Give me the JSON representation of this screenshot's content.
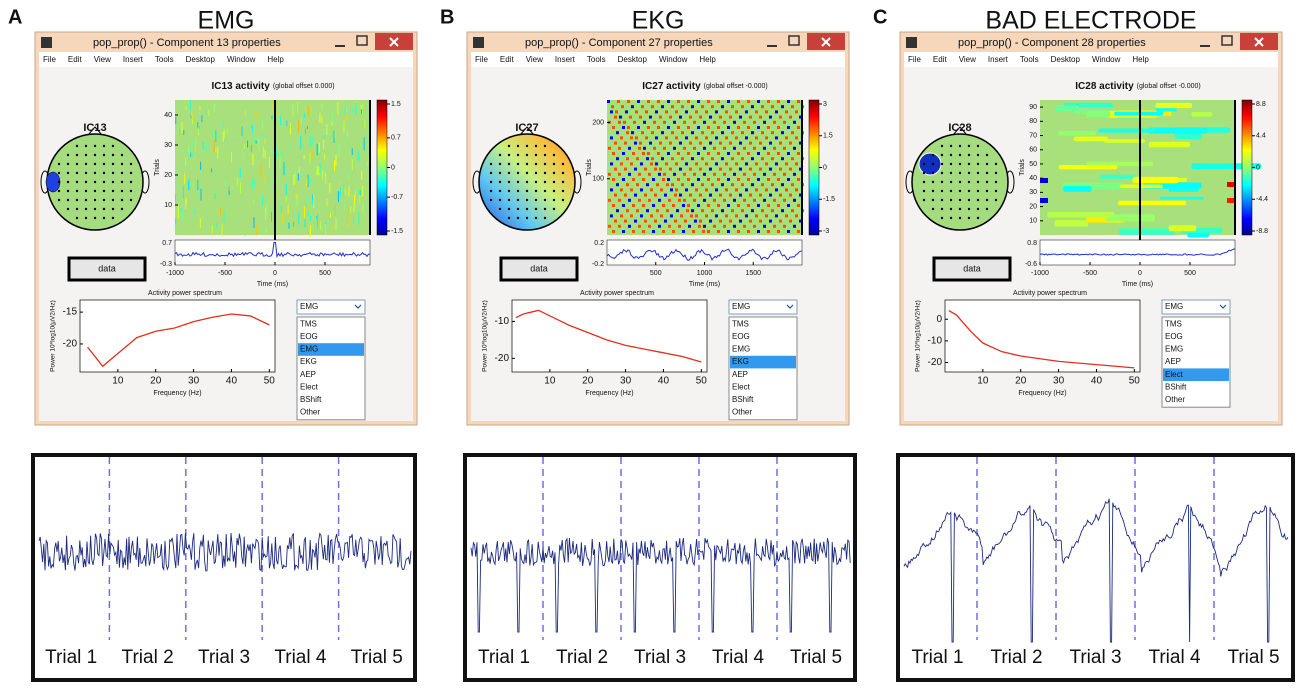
{
  "panels": [
    {
      "letter": "A",
      "heading": "EMG",
      "window_title": "pop_prop() - Component 13 properties",
      "menu": [
        "File",
        "Edit",
        "View",
        "Insert",
        "Tools",
        "Desktop",
        "Window",
        "Help"
      ],
      "ic_label": "IC13",
      "activity_title": "IC13 activity",
      "offset_note": "(global offset 0.000)",
      "erp": {
        "ylabel": "Trials",
        "yticks": [
          10,
          20,
          30,
          40
        ],
        "ylim": [
          0,
          45
        ],
        "colorbar_ticks": [
          1.5,
          0.7,
          0,
          -0.7,
          -1.5
        ],
        "trace_ticks": [
          0.7,
          -0.3
        ],
        "xlabel": "Time (ms)",
        "xticks": [
          -1000,
          -500,
          0,
          500
        ],
        "xlim": [
          -1000,
          950
        ]
      },
      "button": "data",
      "spectrum": {
        "title": "Activity power spectrum",
        "ylabel": "Power 10*log10(μV2/Hz)",
        "xlabel": "Frequency (Hz)",
        "xticks": [
          10,
          20,
          30,
          40,
          50
        ],
        "xlim": [
          0,
          51.5
        ],
        "yticks": [
          -15,
          -20
        ],
        "ylim": [
          -24.4,
          -13.1
        ],
        "x": [
          2,
          4,
          6,
          8,
          10,
          15,
          20,
          25,
          30,
          35,
          40,
          45,
          50
        ],
        "values": [
          -20.5,
          -22,
          -23.5,
          -22.5,
          -21.5,
          -19,
          -18,
          -17.5,
          -16.5,
          -15.8,
          -15.3,
          -15.6,
          -17
        ]
      },
      "dropdown": {
        "selected": "EMG",
        "options": [
          "TMS",
          "EOG",
          "EMG",
          "EKG",
          "AEP",
          "Elect",
          "BShift",
          "Other"
        ],
        "highlighted": 2
      },
      "trials": [
        "Trial 1",
        "Trial 2",
        "Trial 3",
        "Trial 4",
        "Trial 5"
      ]
    },
    {
      "letter": "B",
      "heading": "EKG",
      "window_title": "pop_prop() - Component 27 properties",
      "menu": [
        "File",
        "Edit",
        "View",
        "Insert",
        "Tools",
        "Desktop",
        "Window",
        "Help"
      ],
      "ic_label": "IC27",
      "activity_title": "IC27 activity",
      "offset_note": "(global offset -0.000)",
      "erp": {
        "ylabel": "Trials",
        "yticks": [
          100,
          200
        ],
        "ylim": [
          0,
          240
        ],
        "colorbar_ticks": [
          3,
          1.5,
          0,
          -1.5,
          -3
        ],
        "trace_ticks": [
          0.2,
          -0.2
        ],
        "xlabel": "Time (ms)",
        "xticks": [
          500,
          1000,
          1500
        ],
        "xlim": [
          0,
          2000
        ]
      },
      "button": "data",
      "spectrum": {
        "title": "Activity power spectrum",
        "ylabel": "Power 10*log10(μV2/Hz)",
        "xlabel": "Frequency (Hz)",
        "xticks": [
          10,
          20,
          30,
          40,
          50
        ],
        "xlim": [
          0,
          51.5
        ],
        "yticks": [
          -10,
          -20
        ],
        "ylim": [
          -23.7,
          -4.2
        ],
        "x": [
          1,
          3,
          5,
          7,
          9,
          12,
          15,
          20,
          25,
          30,
          35,
          40,
          45,
          50
        ],
        "values": [
          -9,
          -8,
          -7.5,
          -7,
          -8,
          -9.5,
          -11,
          -13,
          -15,
          -16.5,
          -17.5,
          -18.5,
          -19.5,
          -21
        ]
      },
      "dropdown": {
        "selected": "EMG",
        "options": [
          "TMS",
          "EOG",
          "EMG",
          "EKG",
          "AEP",
          "Elect",
          "BShift",
          "Other"
        ],
        "highlighted": 3
      },
      "trials": [
        "Trial 1",
        "Trial 2",
        "Trial 3",
        "Trial 4",
        "Trial 5"
      ]
    },
    {
      "letter": "C",
      "heading": "BAD ELECTRODE",
      "window_title": "pop_prop() - Component 28 properties",
      "menu": [
        "File",
        "Edit",
        "View",
        "Insert",
        "Tools",
        "Desktop",
        "Window",
        "Help"
      ],
      "ic_label": "IC28",
      "activity_title": "IC28 activity",
      "offset_note": "(global offset -0.000)",
      "erp": {
        "ylabel": "Trials",
        "yticks": [
          10,
          20,
          30,
          40,
          50,
          60,
          70,
          80,
          90
        ],
        "ylim": [
          0,
          95
        ],
        "colorbar_ticks": [
          8.8,
          4.4,
          0,
          -4.4,
          -8.8
        ],
        "trace_ticks": [
          0.8,
          -0.6
        ],
        "xlabel": "Time (ms)",
        "xticks": [
          -1000,
          -500,
          0,
          500
        ],
        "xlim": [
          -1000,
          950
        ]
      },
      "button": "data",
      "spectrum": {
        "title": "Activity power spectrum",
        "ylabel": "Power 10*log10(μV2/Hz)",
        "xlabel": "Frequency (Hz)",
        "xticks": [
          10,
          20,
          30,
          40,
          50
        ],
        "xlim": [
          0,
          51.5
        ],
        "yticks": [
          0,
          -10,
          -20
        ],
        "ylim": [
          -24.4,
          8.9
        ],
        "x": [
          1,
          3,
          5,
          7,
          10,
          15,
          20,
          30,
          40,
          50
        ],
        "values": [
          4,
          2,
          -2,
          -6,
          -11,
          -15,
          -17,
          -19.5,
          -21,
          -22.5
        ]
      },
      "dropdown": {
        "selected": "EMG",
        "options": [
          "TMS",
          "EOG",
          "EMG",
          "AEP",
          "Elect",
          "BShift",
          "Other"
        ],
        "highlighted": 4
      },
      "trials": [
        "Trial 1",
        "Trial 2",
        "Trial 3",
        "Trial 4",
        "Trial 5"
      ]
    }
  ]
}
